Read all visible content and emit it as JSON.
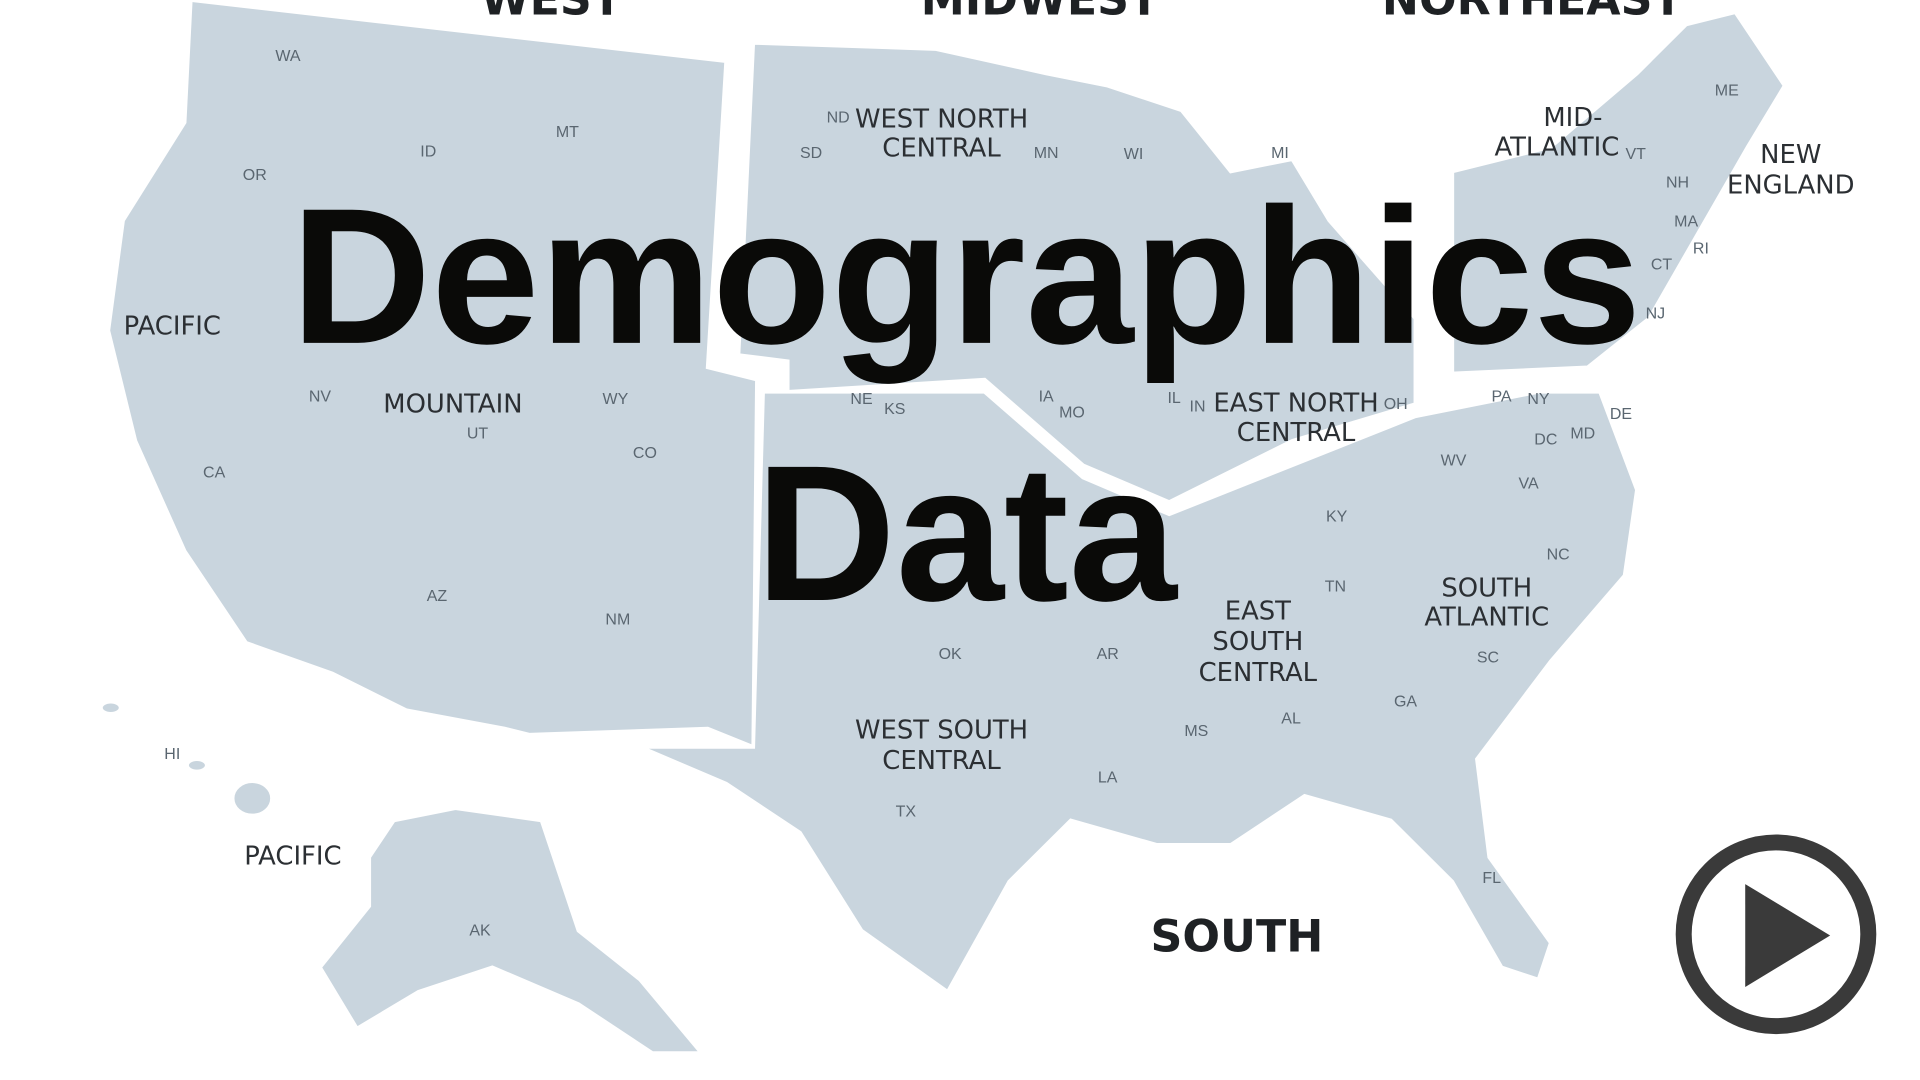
{
  "title": {
    "line1": "Demographics",
    "line2": "Data"
  },
  "regions": {
    "west": "WEST",
    "midwest": "MIDWEST",
    "northeast": "NORTHEAST",
    "south": "SOUTH"
  },
  "divisions": {
    "pacific": "PACIFIC",
    "pacific_alaska": "PACIFIC",
    "mountain": "MOUNTAIN",
    "wnc_line1": "WEST NORTH",
    "wnc_line2": "CENTRAL",
    "enc_line1": "EAST NORTH",
    "enc_line2": "CENTRAL",
    "mid_atlantic_line1": "MID-",
    "mid_atlantic_line2": "ATLANTIC",
    "new_england_line1": "NEW",
    "new_england_line2": "ENGLAND",
    "south_atlantic_line1": "SOUTH",
    "south_atlantic_line2": "ATLANTIC",
    "esc_line1": "EAST",
    "esc_line2": "SOUTH",
    "esc_line3": "CENTRAL",
    "wsc_line1": "WEST SOUTH",
    "wsc_line2": "CENTRAL"
  },
  "states": [
    "WA",
    "OR",
    "CA",
    "ID",
    "NV",
    "MT",
    "WY",
    "UT",
    "CO",
    "AZ",
    "NM",
    "HI",
    "AK",
    "ND",
    "SD",
    "NE",
    "KS",
    "MN",
    "IA",
    "MO",
    "WI",
    "IL",
    "MI",
    "IN",
    "OH",
    "ME",
    "VT",
    "NH",
    "MA",
    "RI",
    "CT",
    "NY",
    "PA",
    "NJ",
    "DE",
    "MD",
    "DC",
    "WV",
    "VA",
    "KY",
    "TN",
    "NC",
    "SC",
    "GA",
    "FL",
    "AL",
    "MS",
    "AR",
    "LA",
    "OK",
    "TX"
  ],
  "colors": {
    "land": "#c9d5de",
    "title": "#0a0a08",
    "play": "#3a3a3a"
  },
  "play_button_icon": "play-icon"
}
